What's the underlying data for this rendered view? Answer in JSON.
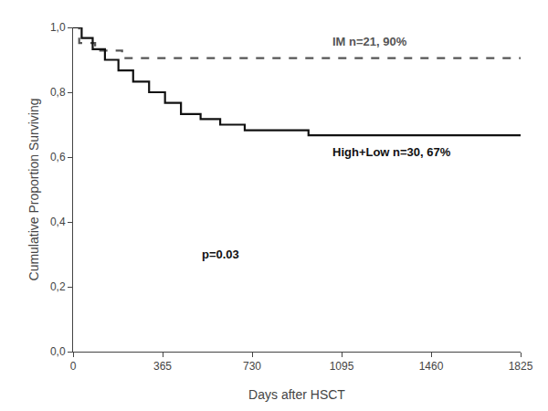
{
  "chart_data": {
    "type": "line",
    "x_label": "Days after HSCT",
    "y_label": "Cumulative Proportion Surviving",
    "series": [
      {
        "name": "IM",
        "color": "#555555",
        "line_style": "dashed",
        "x": [
          0,
          25,
          25,
          90,
          90,
          200,
          200,
          1825
        ],
        "values": [
          1.0,
          1.0,
          0.952,
          0.952,
          0.9286,
          0.9286,
          0.905,
          0.905
        ]
      },
      {
        "name": "High+Low",
        "color": "#111111",
        "line_style": "solid",
        "x": [
          0,
          35,
          35,
          80,
          80,
          130,
          130,
          185,
          185,
          245,
          245,
          310,
          310,
          375,
          375,
          440,
          440,
          520,
          520,
          600,
          600,
          700,
          700,
          820,
          820,
          960,
          960,
          1060,
          1060,
          1825
        ],
        "values": [
          1.0,
          1.0,
          0.967,
          0.967,
          0.933,
          0.933,
          0.9,
          0.9,
          0.867,
          0.867,
          0.833,
          0.833,
          0.8,
          0.8,
          0.767,
          0.767,
          0.733,
          0.733,
          0.717,
          0.717,
          0.7,
          0.7,
          0.683,
          0.683,
          0.683,
          0.683,
          0.667,
          0.667,
          0.667,
          0.667
        ]
      }
    ],
    "annotations": [
      "IM n=21, 90%",
      "High+Low n=30, 67%",
      "p=0.03"
    ],
    "xlim": [
      0,
      1825
    ],
    "xticks": [
      0,
      365,
      730,
      1095,
      1460,
      1825
    ],
    "ylim": [
      0.0,
      1.0
    ],
    "yticks": [
      {
        "value": 0.0,
        "label": "0,0"
      },
      {
        "value": 0.2,
        "label": "0,2"
      },
      {
        "value": 0.4,
        "label": "0,4"
      },
      {
        "value": 0.6,
        "label": "0,6"
      },
      {
        "value": 0.8,
        "label": "0,8"
      },
      {
        "value": 1.0,
        "label": "1,0"
      }
    ],
    "grid": false
  }
}
